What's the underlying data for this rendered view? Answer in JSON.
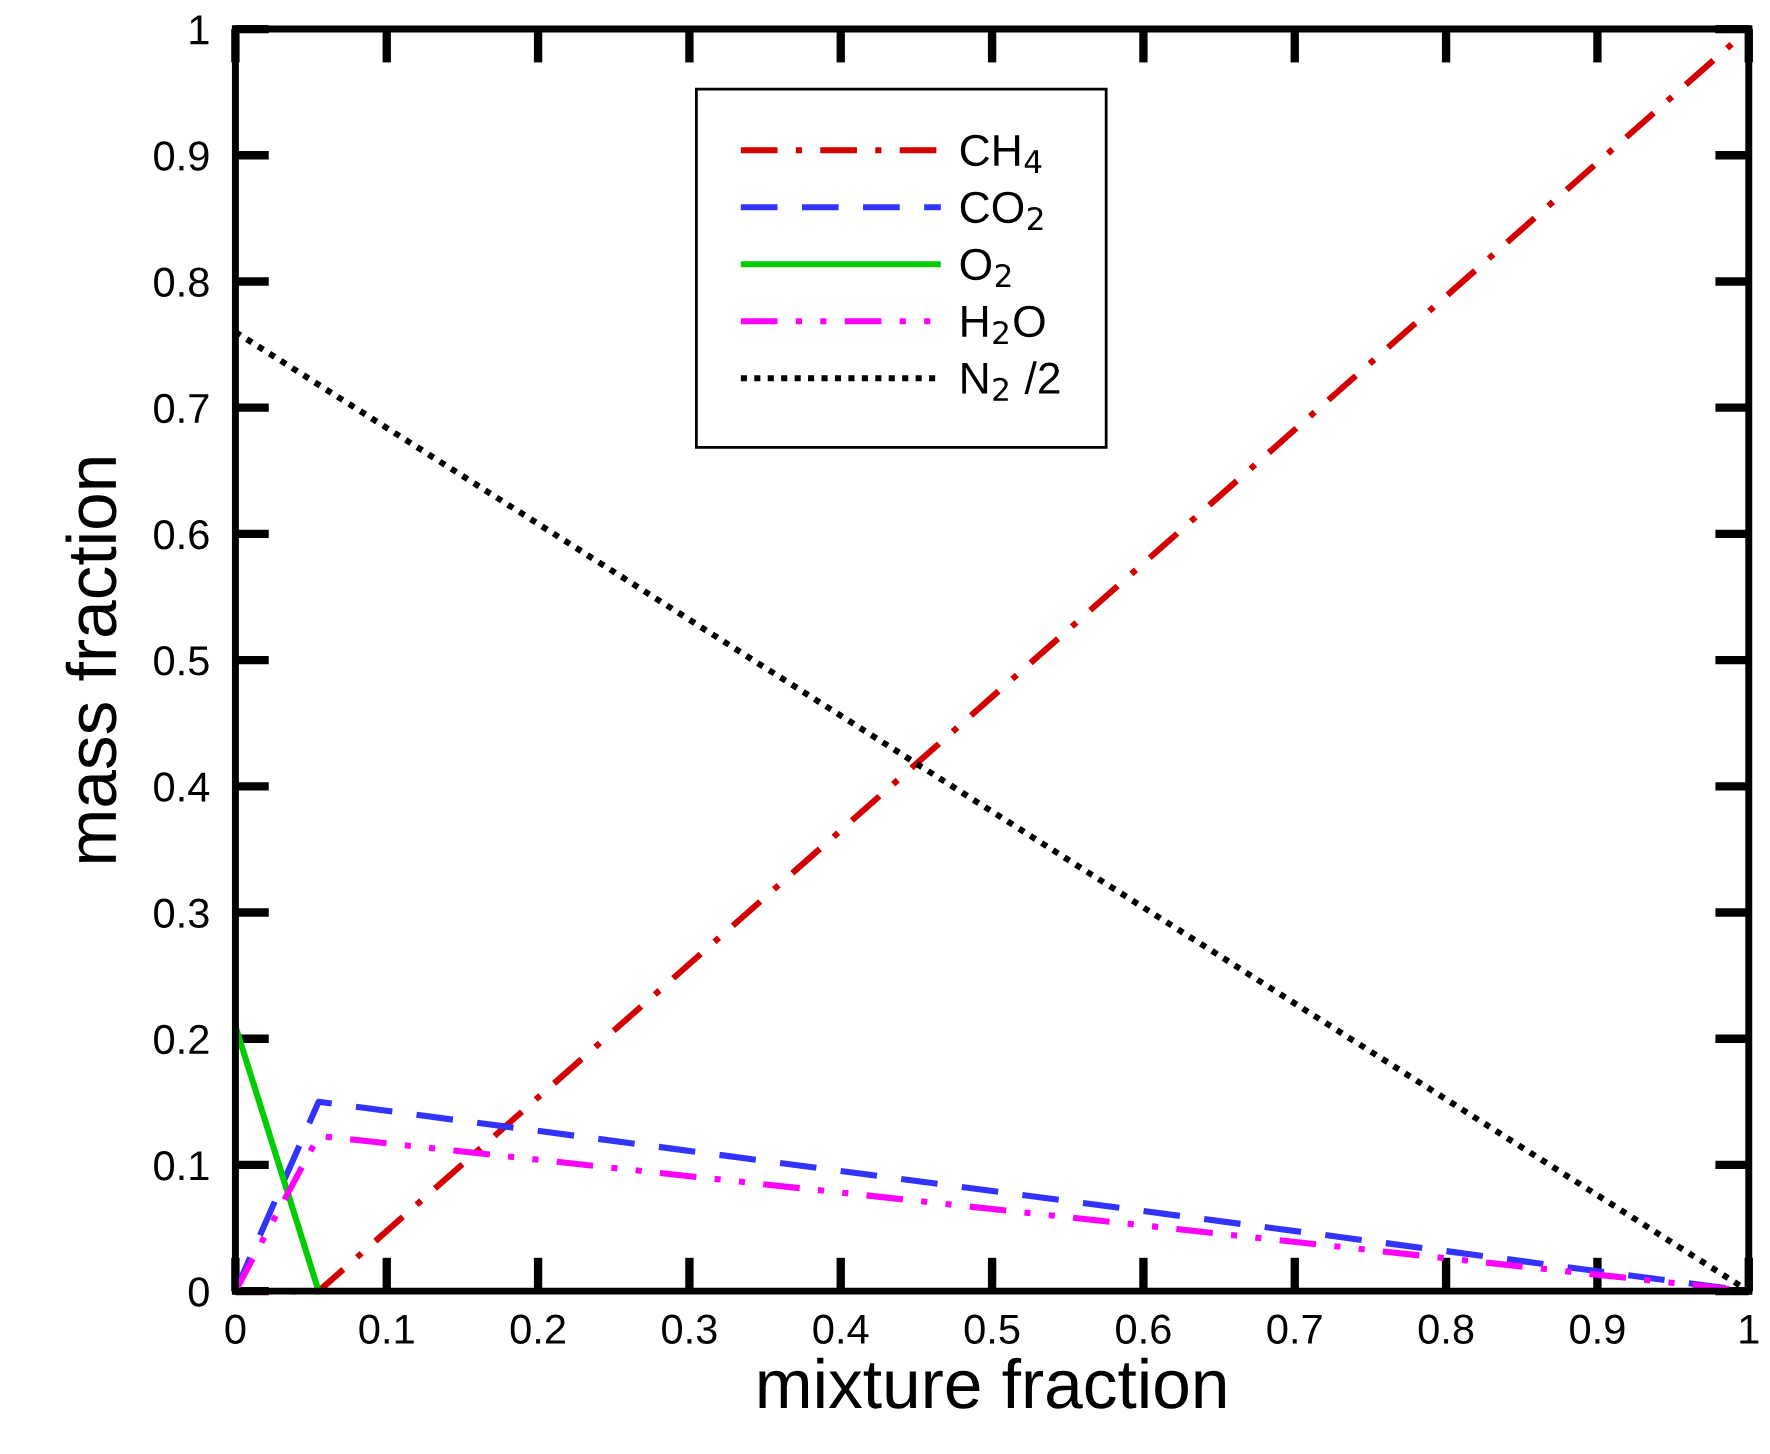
{
  "chart_data": {
    "type": "line",
    "xlabel": "mixture fraction",
    "ylabel": "mass fraction",
    "xlim": [
      0,
      1
    ],
    "ylim": [
      0,
      1
    ],
    "xticks": [
      0,
      0.1,
      0.2,
      0.3,
      0.4,
      0.5,
      0.6,
      0.7,
      0.8,
      0.9,
      1
    ],
    "yticks": [
      0,
      0.1,
      0.2,
      0.3,
      0.4,
      0.5,
      0.6,
      0.7,
      0.8,
      0.9,
      1
    ],
    "grid": false,
    "legend": "top",
    "marker": "none",
    "series": [
      {
        "name": "CH$_{4}$",
        "color": "#d40000",
        "line_style": "dashdot",
        "x": [
          0,
          0.055,
          1
        ],
        "values": [
          0,
          0,
          1
        ]
      },
      {
        "name": "CO$_{2}$",
        "color": "#3333ff",
        "line_style": "dashed",
        "x": [
          0,
          0.055,
          1
        ],
        "values": [
          0,
          0.15,
          0
        ]
      },
      {
        "name": "O$_{2}$",
        "color": "#00cc00",
        "line_style": "solid",
        "x": [
          0,
          0.055
        ],
        "values": [
          0.21,
          0
        ]
      },
      {
        "name": "H$_{2}$O",
        "color": "#ff00ff",
        "line_style": "dashdotdot",
        "x": [
          0,
          0.055,
          1
        ],
        "values": [
          0,
          0.123,
          0
        ]
      },
      {
        "name": "N$_{2}$ /2",
        "color": "#000000",
        "line_style": "dotted",
        "x": [
          0,
          1
        ],
        "values": [
          0.76,
          0
        ]
      }
    ]
  }
}
